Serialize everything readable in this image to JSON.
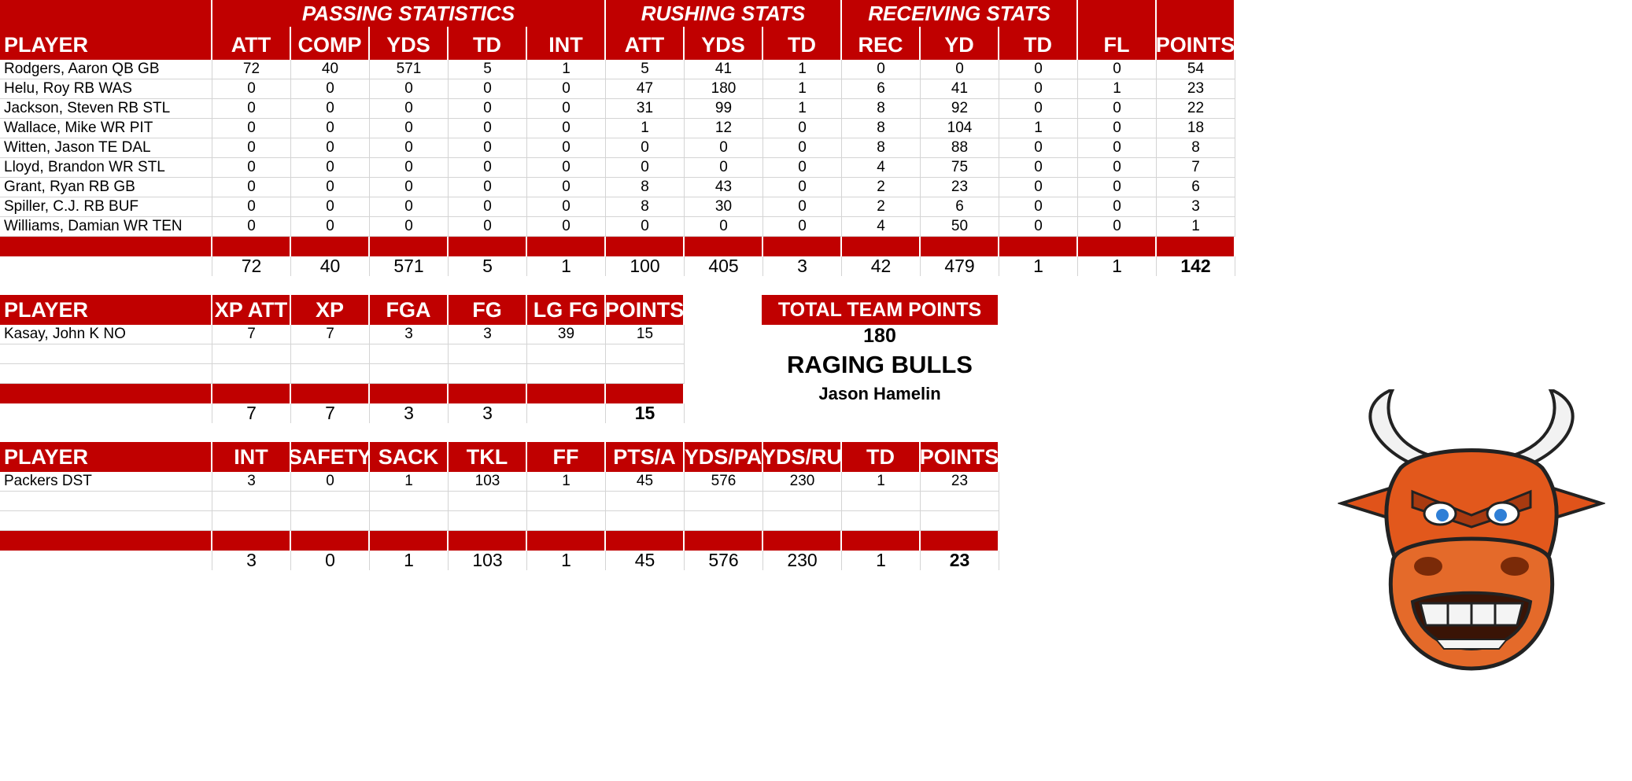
{
  "offense": {
    "group_headers": [
      "PASSING STATISTICS",
      "RUSHING STATS",
      "RECEIVING STATS"
    ],
    "columns": [
      "PLAYER",
      "ATT",
      "COMP",
      "YDS",
      "TD",
      "INT",
      "ATT",
      "YDS",
      "TD",
      "REC",
      "YD",
      "TD",
      "FL",
      "POINTS"
    ],
    "rows": [
      [
        "Rodgers, Aaron QB GB",
        "72",
        "40",
        "571",
        "5",
        "1",
        "5",
        "41",
        "1",
        "0",
        "0",
        "0",
        "0",
        "54"
      ],
      [
        "Helu, Roy RB WAS",
        "0",
        "0",
        "0",
        "0",
        "0",
        "47",
        "180",
        "1",
        "6",
        "41",
        "0",
        "1",
        "23"
      ],
      [
        "Jackson, Steven RB STL",
        "0",
        "0",
        "0",
        "0",
        "0",
        "31",
        "99",
        "1",
        "8",
        "92",
        "0",
        "0",
        "22"
      ],
      [
        "Wallace, Mike WR PIT",
        "0",
        "0",
        "0",
        "0",
        "0",
        "1",
        "12",
        "0",
        "8",
        "104",
        "1",
        "0",
        "18"
      ],
      [
        "Witten, Jason TE DAL",
        "0",
        "0",
        "0",
        "0",
        "0",
        "0",
        "0",
        "0",
        "8",
        "88",
        "0",
        "0",
        "8"
      ],
      [
        "Lloyd, Brandon WR STL",
        "0",
        "0",
        "0",
        "0",
        "0",
        "0",
        "0",
        "0",
        "4",
        "75",
        "0",
        "0",
        "7"
      ],
      [
        "Grant, Ryan RB GB",
        "0",
        "0",
        "0",
        "0",
        "0",
        "8",
        "43",
        "0",
        "2",
        "23",
        "0",
        "0",
        "6"
      ],
      [
        "Spiller, C.J. RB BUF",
        "0",
        "0",
        "0",
        "0",
        "0",
        "8",
        "30",
        "0",
        "2",
        "6",
        "0",
        "0",
        "3"
      ],
      [
        "Williams, Damian WR TEN",
        "0",
        "0",
        "0",
        "0",
        "0",
        "0",
        "0",
        "0",
        "4",
        "50",
        "0",
        "0",
        "1"
      ]
    ],
    "totals": [
      "",
      "72",
      "40",
      "571",
      "5",
      "1",
      "100",
      "405",
      "3",
      "42",
      "479",
      "1",
      "1",
      "142"
    ]
  },
  "kicker": {
    "columns": [
      "PLAYER",
      "XP ATT",
      "XP",
      "FGA",
      "FG",
      "LG FG",
      "POINTS"
    ],
    "rows": [
      [
        "Kasay, John K NO",
        "7",
        "7",
        "3",
        "3",
        "39",
        "15"
      ],
      [
        "",
        "",
        "",
        "",
        "",
        "",
        ""
      ],
      [
        "",
        "",
        "",
        "",
        "",
        "",
        ""
      ]
    ],
    "totals": [
      "",
      "7",
      "7",
      "3",
      "3",
      "",
      "15"
    ]
  },
  "defense": {
    "columns": [
      "PLAYER",
      "INT",
      "SAFETY",
      "SACK",
      "TKL",
      "FF",
      "PTS/A",
      "YDS/PA",
      "YDS/RU",
      "TD",
      "POINTS"
    ],
    "rows": [
      [
        "Packers DST",
        "3",
        "0",
        "1",
        "103",
        "1",
        "45",
        "576",
        "230",
        "1",
        "23"
      ],
      [
        "",
        "",
        "",
        "",
        "",
        "",
        "",
        "",
        "",
        "",
        ""
      ],
      [
        "",
        "",
        "",
        "",
        "",
        "",
        "",
        "",
        "",
        "",
        ""
      ]
    ],
    "totals": [
      "",
      "3",
      "0",
      "1",
      "103",
      "1",
      "45",
      "576",
      "230",
      "1",
      "23"
    ]
  },
  "team": {
    "total_label": "TOTAL TEAM POINTS",
    "total_value": "180",
    "name": "RAGING BULLS",
    "owner": "Jason Hamelin",
    "logo_icon": "angry-bull-mascot-icon"
  },
  "colors": {
    "header_red": "#c00000",
    "header_text": "#ffffff",
    "grid_line": "#d4d4d4"
  }
}
